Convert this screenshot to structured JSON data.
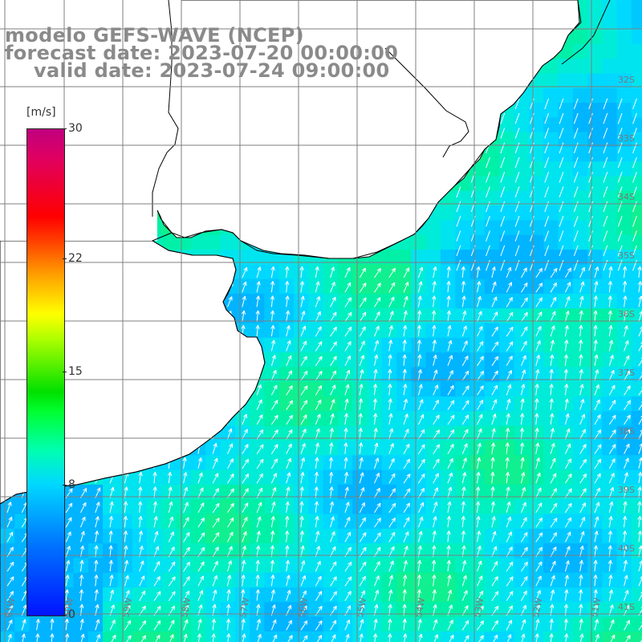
{
  "title": {
    "model": "modelo GEFS-WAVE (NCEP)",
    "forecast": "forecast date: 2023-07-20 00:00:00",
    "valid": "valid date: 2023-07-24 09:00:00"
  },
  "colorbar": {
    "unit": "[m/s]",
    "ticks": [
      {
        "label": "30",
        "value": 30
      },
      {
        "label": "22",
        "value": 22
      },
      {
        "label": "15",
        "value": 15
      },
      {
        "label": "8",
        "value": 8
      },
      {
        "label": "0",
        "value": 0
      }
    ],
    "range": [
      0,
      30
    ]
  },
  "map": {
    "lat_labels": [
      "32S",
      "33S",
      "34S",
      "35S",
      "36S",
      "37S",
      "38S",
      "39S",
      "40S",
      "41S"
    ],
    "lon_labels": [
      "61W",
      "60W",
      "59W",
      "58W",
      "57W",
      "56W",
      "55W",
      "54W",
      "53W",
      "52W",
      "51W"
    ],
    "land_color": "#ffffff",
    "coast_color": "#000000",
    "grid_color": "#7f7f7f",
    "arrow_color": "#ffffff"
  }
}
